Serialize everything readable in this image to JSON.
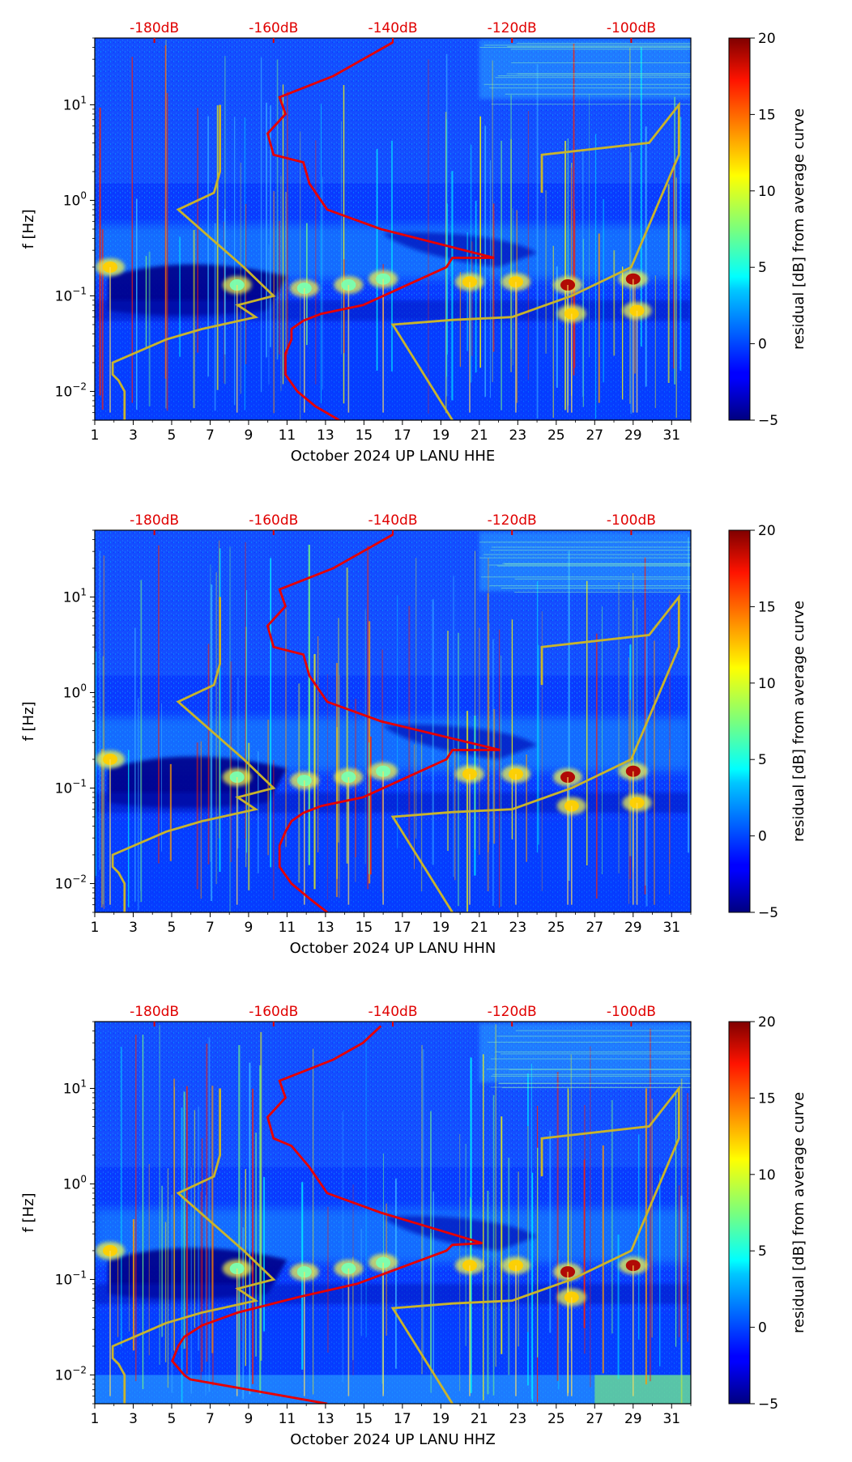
{
  "chart_data": [
    {
      "type": "heatmap",
      "xlabel": "October 2024 UP LANU  HHE",
      "ylabel": "f [Hz]",
      "x_ticks": [
        "1",
        "3",
        "5",
        "7",
        "9",
        "11",
        "13",
        "15",
        "17",
        "19",
        "21",
        "23",
        "25",
        "27",
        "29",
        "31"
      ],
      "x_tick_values": [
        1,
        3,
        5,
        7,
        9,
        11,
        13,
        15,
        17,
        19,
        21,
        23,
        25,
        27,
        29,
        31
      ],
      "xlim": [
        1,
        32
      ],
      "ylim": [
        0.005,
        50
      ],
      "y_ticks": [
        {
          "base": "10",
          "exp": "−2",
          "value": 0.01
        },
        {
          "base": "10",
          "exp": "−1",
          "value": 0.1
        },
        {
          "base": "10",
          "exp": "0",
          "value": 1
        },
        {
          "base": "10",
          "exp": "1",
          "value": 10
        }
      ],
      "top_axis_ticks": [
        "-180dB",
        "-160dB",
        "-140dB",
        "-120dB",
        "-100dB"
      ],
      "top_axis_values": [
        -180,
        -160,
        -140,
        -120,
        -100
      ],
      "top_axis_range": [
        -190,
        -90
      ],
      "colorbar": {
        "label": "residual [dB] from average curve",
        "range": [
          -5,
          20
        ],
        "ticks": [
          "−5",
          "0",
          "5",
          "10",
          "15",
          "20"
        ],
        "tick_values": [
          -5,
          0,
          5,
          10,
          15,
          20
        ]
      },
      "red_curve": {
        "name": "average PSD",
        "db": [
          -149,
          -153,
          -156,
          -158,
          -158,
          -157,
          -157,
          -155,
          -152,
          -145,
          -131,
          -130,
          -123,
          -142,
          -151,
          -154,
          -155,
          -160,
          -161,
          -158,
          -159,
          -150,
          -145,
          -140
        ],
        "freq": [
          0.005,
          0.007,
          0.01,
          0.015,
          0.025,
          0.035,
          0.045,
          0.055,
          0.065,
          0.08,
          0.2,
          0.25,
          0.25,
          0.5,
          0.8,
          1.5,
          2.5,
          3,
          5,
          8,
          12,
          20,
          30,
          45
        ]
      },
      "low_noise_model": {
        "name": "NLNM",
        "db": [
          -185,
          -185,
          -186,
          -187,
          -187,
          -178,
          -172,
          -163,
          -166,
          -160,
          -165,
          -176,
          -170,
          -169,
          -169
        ],
        "freq": [
          0.005,
          0.01,
          0.013,
          0.015,
          0.02,
          0.035,
          0.045,
          0.06,
          0.08,
          0.1,
          0.2,
          0.8,
          1.2,
          2,
          10
        ]
      },
      "high_noise_model": {
        "name": "NHNM",
        "db": [
          -130,
          -140,
          -130,
          -120,
          -110,
          -100,
          -92,
          -92,
          -97,
          -115,
          -115
        ],
        "freq": [
          0.005,
          0.05,
          0.056,
          0.06,
          0.1,
          0.2,
          3,
          10,
          4,
          3,
          1.2
        ],
        "rev_freq": [
          0.005,
          0.05,
          0.06,
          0.1,
          0.2,
          1.2,
          3,
          4,
          10
        ]
      },
      "events": [
        {
          "day": 25.6,
          "freq": 0.13,
          "strength": 20
        },
        {
          "day": 29.0,
          "freq": 0.15,
          "strength": 19
        },
        {
          "day": 25.8,
          "freq": 0.065,
          "strength": 12
        },
        {
          "day": 29.2,
          "freq": 0.07,
          "strength": 10
        },
        {
          "day": 22.9,
          "freq": 0.14,
          "strength": 10
        },
        {
          "day": 11.9,
          "freq": 0.12,
          "strength": 8
        },
        {
          "day": 14.2,
          "freq": 0.13,
          "strength": 8
        },
        {
          "day": 20.5,
          "freq": 0.14,
          "strength": 9
        },
        {
          "day": 1.8,
          "freq": 0.2,
          "strength": 9
        },
        {
          "day": 8.4,
          "freq": 0.13,
          "strength": 6
        },
        {
          "day": 16.0,
          "freq": 0.15,
          "strength": 7
        }
      ]
    },
    {
      "type": "heatmap",
      "xlabel": "October 2024 UP LANU  HHN",
      "ylabel": "f [Hz]",
      "x_ticks": [
        "1",
        "3",
        "5",
        "7",
        "9",
        "11",
        "13",
        "15",
        "17",
        "19",
        "21",
        "23",
        "25",
        "27",
        "29",
        "31"
      ],
      "x_tick_values": [
        1,
        3,
        5,
        7,
        9,
        11,
        13,
        15,
        17,
        19,
        21,
        23,
        25,
        27,
        29,
        31
      ],
      "xlim": [
        1,
        32
      ],
      "ylim": [
        0.005,
        50
      ],
      "y_ticks": [
        {
          "base": "10",
          "exp": "−2",
          "value": 0.01
        },
        {
          "base": "10",
          "exp": "−1",
          "value": 0.1
        },
        {
          "base": "10",
          "exp": "0",
          "value": 1
        },
        {
          "base": "10",
          "exp": "1",
          "value": 10
        }
      ],
      "top_axis_ticks": [
        "-180dB",
        "-160dB",
        "-140dB",
        "-120dB",
        "-100dB"
      ],
      "top_axis_values": [
        -180,
        -160,
        -140,
        -120,
        -100
      ],
      "top_axis_range": [
        -190,
        -90
      ],
      "colorbar": {
        "label": "residual [dB] from average curve",
        "range": [
          -5,
          20
        ],
        "ticks": [
          "−5",
          "0",
          "5",
          "10",
          "15",
          "20"
        ],
        "tick_values": [
          -5,
          0,
          5,
          10,
          15,
          20
        ]
      },
      "red_curve": {
        "name": "average PSD",
        "db": [
          -151,
          -154,
          -157,
          -159,
          -159,
          -158,
          -157,
          -155,
          -152,
          -145,
          -131,
          -130,
          -122,
          -142,
          -151,
          -154,
          -155,
          -160,
          -161,
          -158,
          -159,
          -150,
          -145,
          -140
        ],
        "freq": [
          0.005,
          0.007,
          0.01,
          0.015,
          0.025,
          0.035,
          0.045,
          0.055,
          0.065,
          0.08,
          0.2,
          0.25,
          0.25,
          0.5,
          0.8,
          1.5,
          2.5,
          3,
          5,
          8,
          12,
          20,
          30,
          45
        ]
      },
      "low_noise_model": {
        "name": "NLNM",
        "db": [
          -185,
          -185,
          -186,
          -187,
          -187,
          -178,
          -172,
          -163,
          -166,
          -160,
          -165,
          -176,
          -170,
          -169,
          -169
        ],
        "freq": [
          0.005,
          0.01,
          0.013,
          0.015,
          0.02,
          0.035,
          0.045,
          0.06,
          0.08,
          0.1,
          0.2,
          0.8,
          1.2,
          2,
          10
        ]
      },
      "high_noise_model": {
        "name": "NHNM",
        "db": [
          -130,
          -140,
          -130,
          -120,
          -110,
          -100,
          -92,
          -92,
          -97,
          -115,
          -115
        ],
        "freq": [
          0.005,
          0.05,
          0.056,
          0.06,
          0.1,
          0.2,
          3,
          10,
          4,
          3,
          1.2
        ]
      },
      "events": [
        {
          "day": 25.6,
          "freq": 0.13,
          "strength": 20
        },
        {
          "day": 29.0,
          "freq": 0.15,
          "strength": 19
        },
        {
          "day": 25.8,
          "freq": 0.065,
          "strength": 12
        },
        {
          "day": 29.2,
          "freq": 0.07,
          "strength": 10
        },
        {
          "day": 22.9,
          "freq": 0.14,
          "strength": 10
        },
        {
          "day": 11.9,
          "freq": 0.12,
          "strength": 8
        },
        {
          "day": 14.2,
          "freq": 0.13,
          "strength": 8
        },
        {
          "day": 20.5,
          "freq": 0.14,
          "strength": 9
        },
        {
          "day": 1.8,
          "freq": 0.2,
          "strength": 9
        },
        {
          "day": 8.4,
          "freq": 0.13,
          "strength": 6
        },
        {
          "day": 16.0,
          "freq": 0.15,
          "strength": 7
        }
      ]
    },
    {
      "type": "heatmap",
      "xlabel": "October 2024 UP LANU  HHZ",
      "ylabel": "f [Hz]",
      "x_ticks": [
        "1",
        "3",
        "5",
        "7",
        "9",
        "11",
        "13",
        "15",
        "17",
        "19",
        "21",
        "23",
        "25",
        "27",
        "29",
        "31"
      ],
      "x_tick_values": [
        1,
        3,
        5,
        7,
        9,
        11,
        13,
        15,
        17,
        19,
        21,
        23,
        25,
        27,
        29,
        31
      ],
      "xlim": [
        1,
        32
      ],
      "ylim": [
        0.005,
        50
      ],
      "y_ticks": [
        {
          "base": "10",
          "exp": "−2",
          "value": 0.01
        },
        {
          "base": "10",
          "exp": "−1",
          "value": 0.1
        },
        {
          "base": "10",
          "exp": "0",
          "value": 1
        },
        {
          "base": "10",
          "exp": "1",
          "value": 10
        }
      ],
      "top_axis_ticks": [
        "-180dB",
        "-160dB",
        "-140dB",
        "-120dB",
        "-100dB"
      ],
      "top_axis_values": [
        -180,
        -160,
        -140,
        -120,
        -100
      ],
      "top_axis_range": [
        -190,
        -90
      ],
      "colorbar": {
        "label": "residual [dB] from average curve",
        "range": [
          -5,
          20
        ],
        "ticks": [
          "−5",
          "0",
          "5",
          "10",
          "15",
          "20"
        ],
        "tick_values": [
          -5,
          0,
          5,
          10,
          15,
          20
        ]
      },
      "red_curve": {
        "name": "average PSD",
        "db": [
          -151,
          -174,
          -175,
          -177,
          -176,
          -175,
          -172,
          -166,
          -156,
          -146,
          -131,
          -130,
          -125,
          -142,
          -151,
          -154,
          -157,
          -160,
          -161,
          -158,
          -159,
          -150,
          -145,
          -142
        ],
        "freq": [
          0.005,
          0.009,
          0.01,
          0.014,
          0.02,
          0.025,
          0.033,
          0.045,
          0.065,
          0.09,
          0.2,
          0.23,
          0.24,
          0.5,
          0.8,
          1.5,
          2.5,
          3,
          5,
          8,
          12,
          20,
          30,
          45
        ]
      },
      "low_noise_model": {
        "name": "NLNM",
        "db": [
          -185,
          -185,
          -186,
          -187,
          -187,
          -178,
          -172,
          -163,
          -166,
          -160,
          -165,
          -176,
          -170,
          -169,
          -169
        ],
        "freq": [
          0.005,
          0.01,
          0.013,
          0.015,
          0.02,
          0.035,
          0.045,
          0.06,
          0.08,
          0.1,
          0.2,
          0.8,
          1.2,
          2,
          10
        ]
      },
      "high_noise_model": {
        "name": "NHNM",
        "db": [
          -130,
          -140,
          -130,
          -120,
          -110,
          -100,
          -92,
          -92,
          -97,
          -115,
          -115
        ],
        "freq": [
          0.005,
          0.05,
          0.056,
          0.06,
          0.1,
          0.2,
          3,
          10,
          4,
          3,
          1.2
        ]
      },
      "events": [
        {
          "day": 25.6,
          "freq": 0.12,
          "strength": 20
        },
        {
          "day": 29.0,
          "freq": 0.14,
          "strength": 19
        },
        {
          "day": 25.8,
          "freq": 0.065,
          "strength": 10
        },
        {
          "day": 22.9,
          "freq": 0.14,
          "strength": 10
        },
        {
          "day": 11.9,
          "freq": 0.12,
          "strength": 8
        },
        {
          "day": 14.2,
          "freq": 0.13,
          "strength": 8
        },
        {
          "day": 20.5,
          "freq": 0.14,
          "strength": 9
        },
        {
          "day": 1.8,
          "freq": 0.2,
          "strength": 9
        },
        {
          "day": 8.4,
          "freq": 0.13,
          "strength": 6
        },
        {
          "day": 16.0,
          "freq": 0.15,
          "strength": 7
        }
      ]
    }
  ]
}
